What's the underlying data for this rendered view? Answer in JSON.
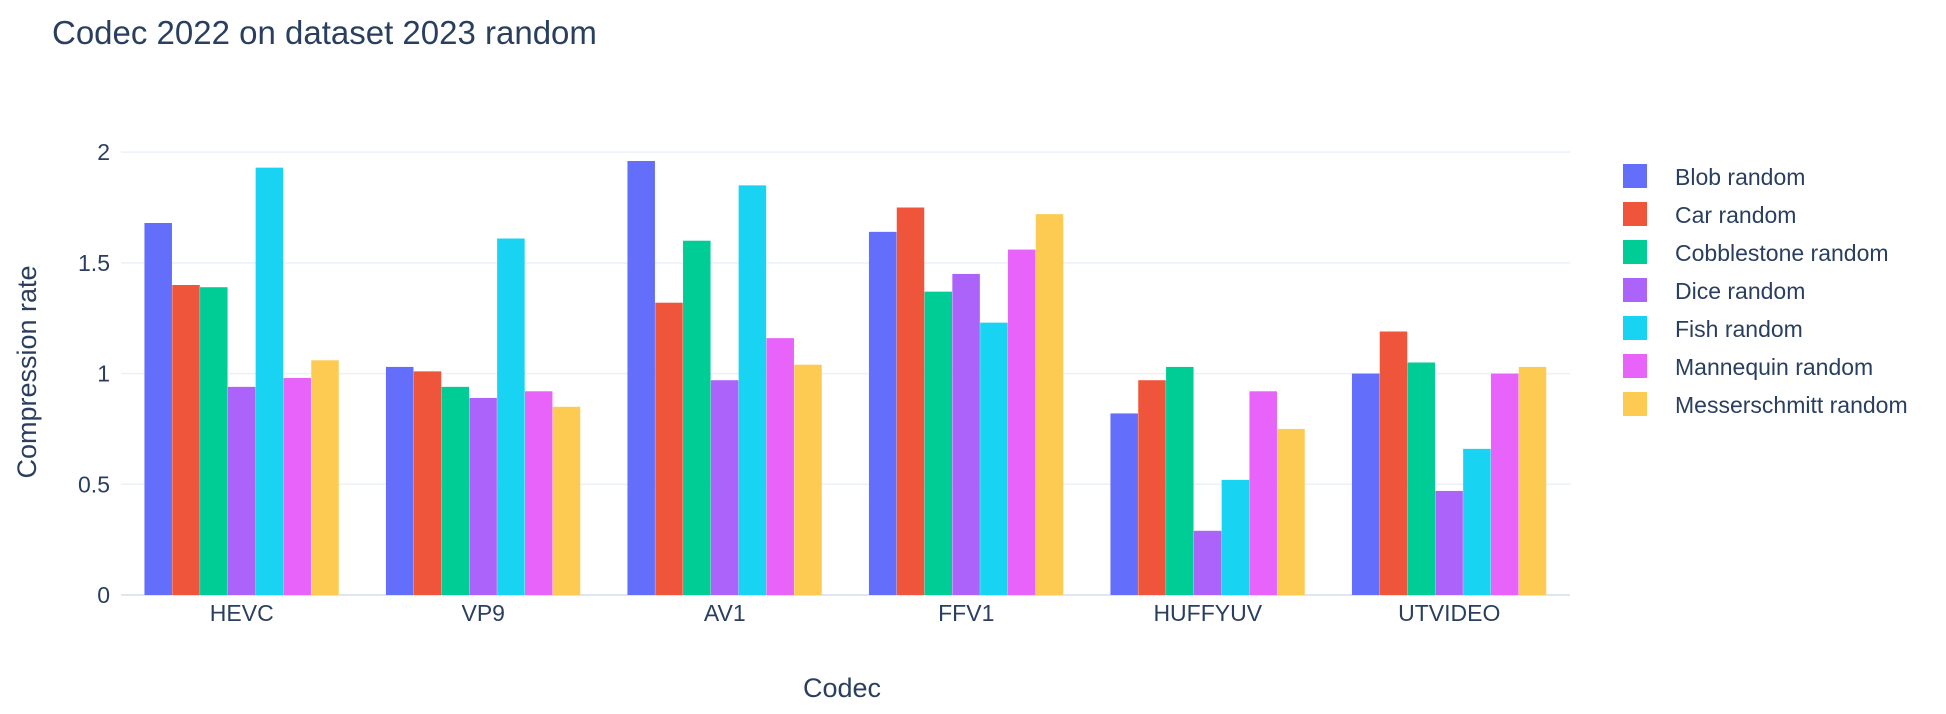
{
  "chart_data": {
    "type": "bar",
    "title": "Codec 2022 on dataset 2023 random",
    "xlabel": "Codec",
    "ylabel": "Compression rate",
    "categories": [
      "HEVC",
      "VP9",
      "AV1",
      "FFV1",
      "HUFFYUV",
      "UTVIDEO"
    ],
    "ylim": [
      0,
      2.1
    ],
    "yticks": [
      0,
      0.5,
      1,
      1.5,
      2
    ],
    "ytick_labels": [
      "0",
      "0.5",
      "1",
      "1.5",
      "2"
    ],
    "grid": true,
    "legend_position": "right",
    "series": [
      {
        "name": "Blob random",
        "color": "#636efa",
        "values": [
          1.68,
          1.03,
          1.96,
          1.64,
          0.82,
          1.0
        ]
      },
      {
        "name": "Car random",
        "color": "#ef553b",
        "values": [
          1.4,
          1.01,
          1.32,
          1.75,
          0.97,
          1.19
        ]
      },
      {
        "name": "Cobblestone random",
        "color": "#00cc96",
        "values": [
          1.39,
          0.94,
          1.6,
          1.37,
          1.03,
          1.05
        ]
      },
      {
        "name": "Dice random",
        "color": "#ab63fa",
        "values": [
          0.94,
          0.89,
          0.97,
          1.45,
          0.29,
          0.47
        ]
      },
      {
        "name": "Fish random",
        "color": "#19d3f3",
        "values": [
          1.93,
          1.61,
          1.85,
          1.23,
          0.52,
          0.66
        ]
      },
      {
        "name": "Mannequin random",
        "color": "#e763fa",
        "values": [
          0.98,
          0.92,
          1.16,
          1.56,
          0.92,
          1.0
        ]
      },
      {
        "name": "Messerschmitt random",
        "color": "#fecb52",
        "values": [
          1.06,
          0.85,
          1.04,
          1.72,
          0.75,
          1.03
        ]
      }
    ]
  }
}
